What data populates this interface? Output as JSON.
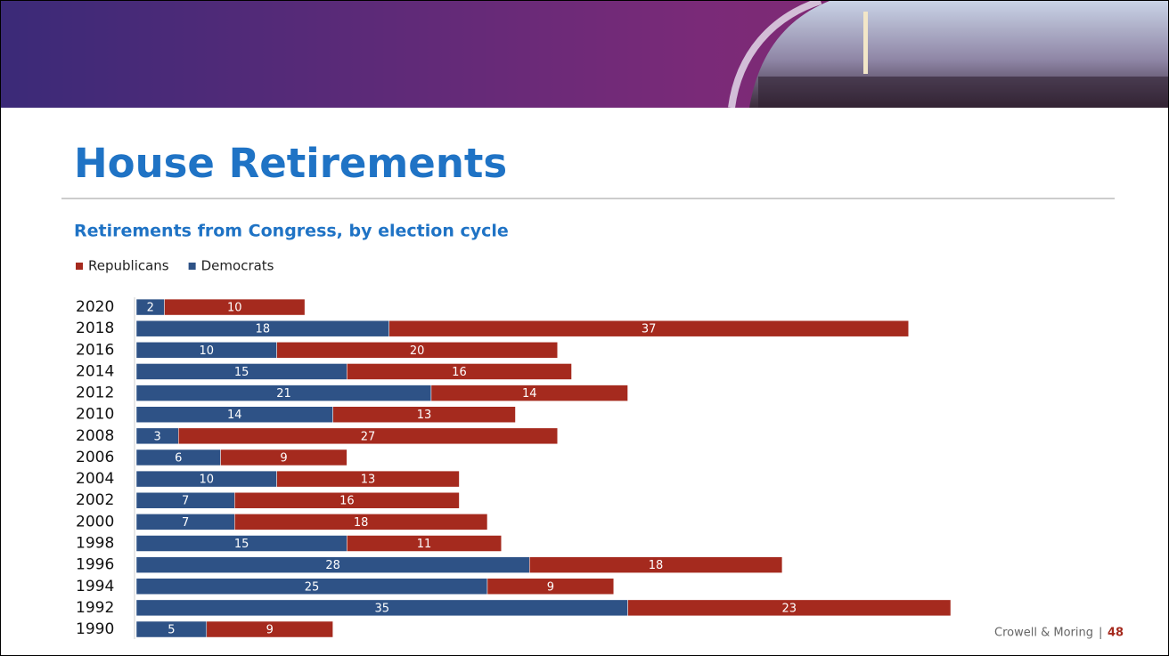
{
  "slide": {
    "title": "House Retirements",
    "subtitle": "Retirements from Congress, by election cycle",
    "footer": "Crowell & Moring",
    "separator": "|",
    "page": "48"
  },
  "chart_data": {
    "type": "stacked-bar-horizontal",
    "categories": [
      "2020",
      "2018",
      "2016",
      "2014",
      "2012",
      "2010",
      "2008",
      "2006",
      "2004",
      "2002",
      "2000",
      "1998",
      "1996",
      "1994",
      "1992",
      "1990"
    ],
    "series": [
      {
        "name": "Republicans",
        "color": "#a52a1e",
        "values": [
          10,
          37,
          20,
          16,
          14,
          13,
          27,
          9,
          13,
          16,
          18,
          11,
          18,
          9,
          23,
          9
        ]
      },
      {
        "name": "Democrats",
        "color": "#2e5286",
        "values": [
          2,
          18,
          10,
          15,
          21,
          14,
          3,
          6,
          10,
          7,
          7,
          15,
          28,
          25,
          35,
          5
        ]
      }
    ]
  }
}
